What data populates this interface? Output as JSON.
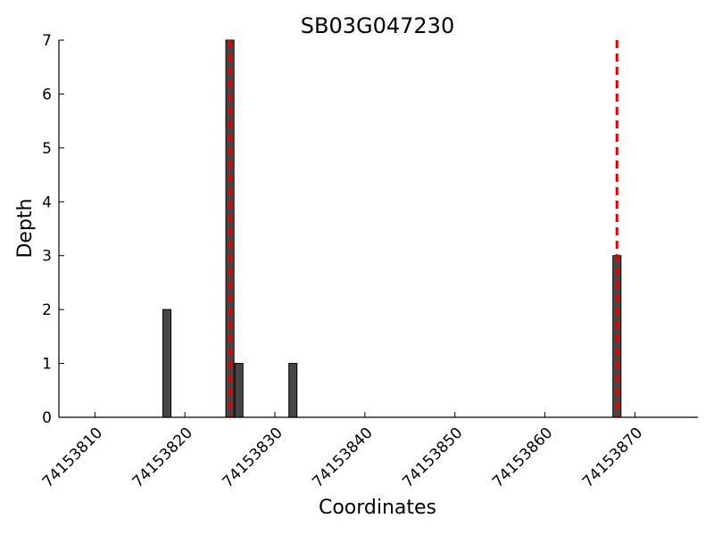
{
  "chart_data": {
    "type": "bar",
    "title": "SB03G047230",
    "xlabel": "Coordinates",
    "ylabel": "Depth",
    "xlim": [
      74153806,
      74153877
    ],
    "ylim": [
      0,
      7
    ],
    "xticks": [
      74153810,
      74153820,
      74153830,
      74153840,
      74153850,
      74153860,
      74153870
    ],
    "yticks": [
      0,
      1,
      2,
      3,
      4,
      5,
      6,
      7
    ],
    "bars": [
      {
        "x": 74153818,
        "value": 2
      },
      {
        "x": 74153825,
        "value": 7
      },
      {
        "x": 74153826,
        "value": 1
      },
      {
        "x": 74153832,
        "value": 1
      },
      {
        "x": 74153868,
        "value": 3
      }
    ],
    "vlines": [
      {
        "x": 74153825,
        "color": "#e00000",
        "style": "dashed"
      },
      {
        "x": 74153868,
        "color": "#e00000",
        "style": "dashed"
      }
    ],
    "grid": false,
    "colors": {
      "bar": "#464646",
      "vline": "#e00000"
    }
  }
}
